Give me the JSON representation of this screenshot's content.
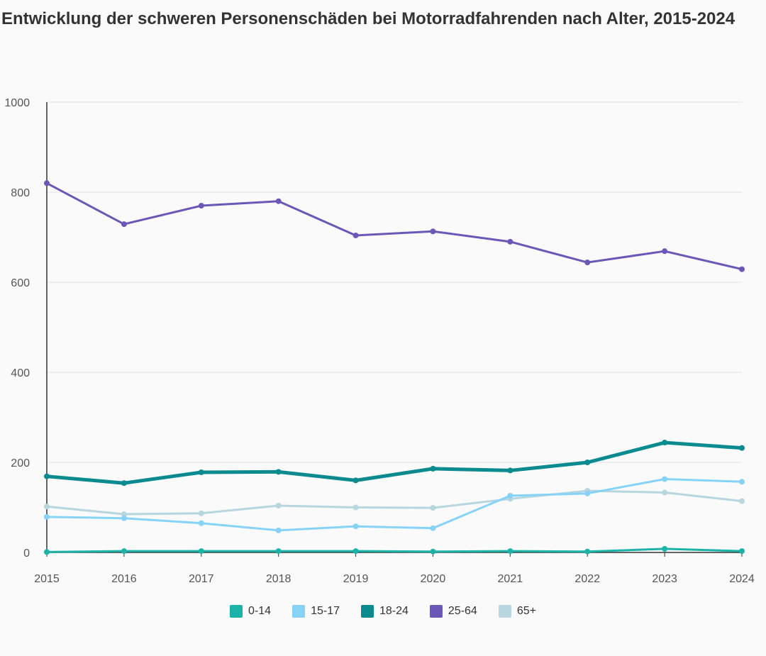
{
  "title": "Entwicklung der schweren Personenschäden bei Motorradfahrenden nach Alter, 2015-2024",
  "chart_data": {
    "type": "line",
    "title": "Entwicklung der schweren Personenschäden bei Motorradfahrenden nach Alter, 2015-2024",
    "xlabel": "",
    "ylabel": "",
    "x": [
      "2015",
      "2016",
      "2017",
      "2018",
      "2019",
      "2020",
      "2021",
      "2022",
      "2023",
      "2024"
    ],
    "ylim": [
      0,
      1000
    ],
    "yticks": [
      "0",
      "200",
      "400",
      "600",
      "800",
      "1000"
    ],
    "grid": true,
    "legend_position": "bottom",
    "series": [
      {
        "name": "0-14",
        "color": "#1bb3a8",
        "values": [
          1,
          3,
          3,
          3,
          3,
          2,
          3,
          2,
          8,
          3
        ]
      },
      {
        "name": "15-17",
        "color": "#87d3f8",
        "values": [
          79,
          76,
          65,
          49,
          58,
          54,
          126,
          131,
          163,
          157
        ]
      },
      {
        "name": "18-24",
        "color": "#0b8a8f",
        "values": [
          169,
          154,
          178,
          179,
          160,
          186,
          182,
          200,
          244,
          232
        ]
      },
      {
        "name": "25-64",
        "color": "#6a58b8",
        "values": [
          820,
          729,
          770,
          780,
          704,
          713,
          690,
          644,
          669,
          629
        ]
      },
      {
        "name": "65+",
        "color": "#b7d6df",
        "values": [
          102,
          85,
          87,
          104,
          100,
          99,
          119,
          137,
          133,
          114
        ]
      }
    ]
  }
}
